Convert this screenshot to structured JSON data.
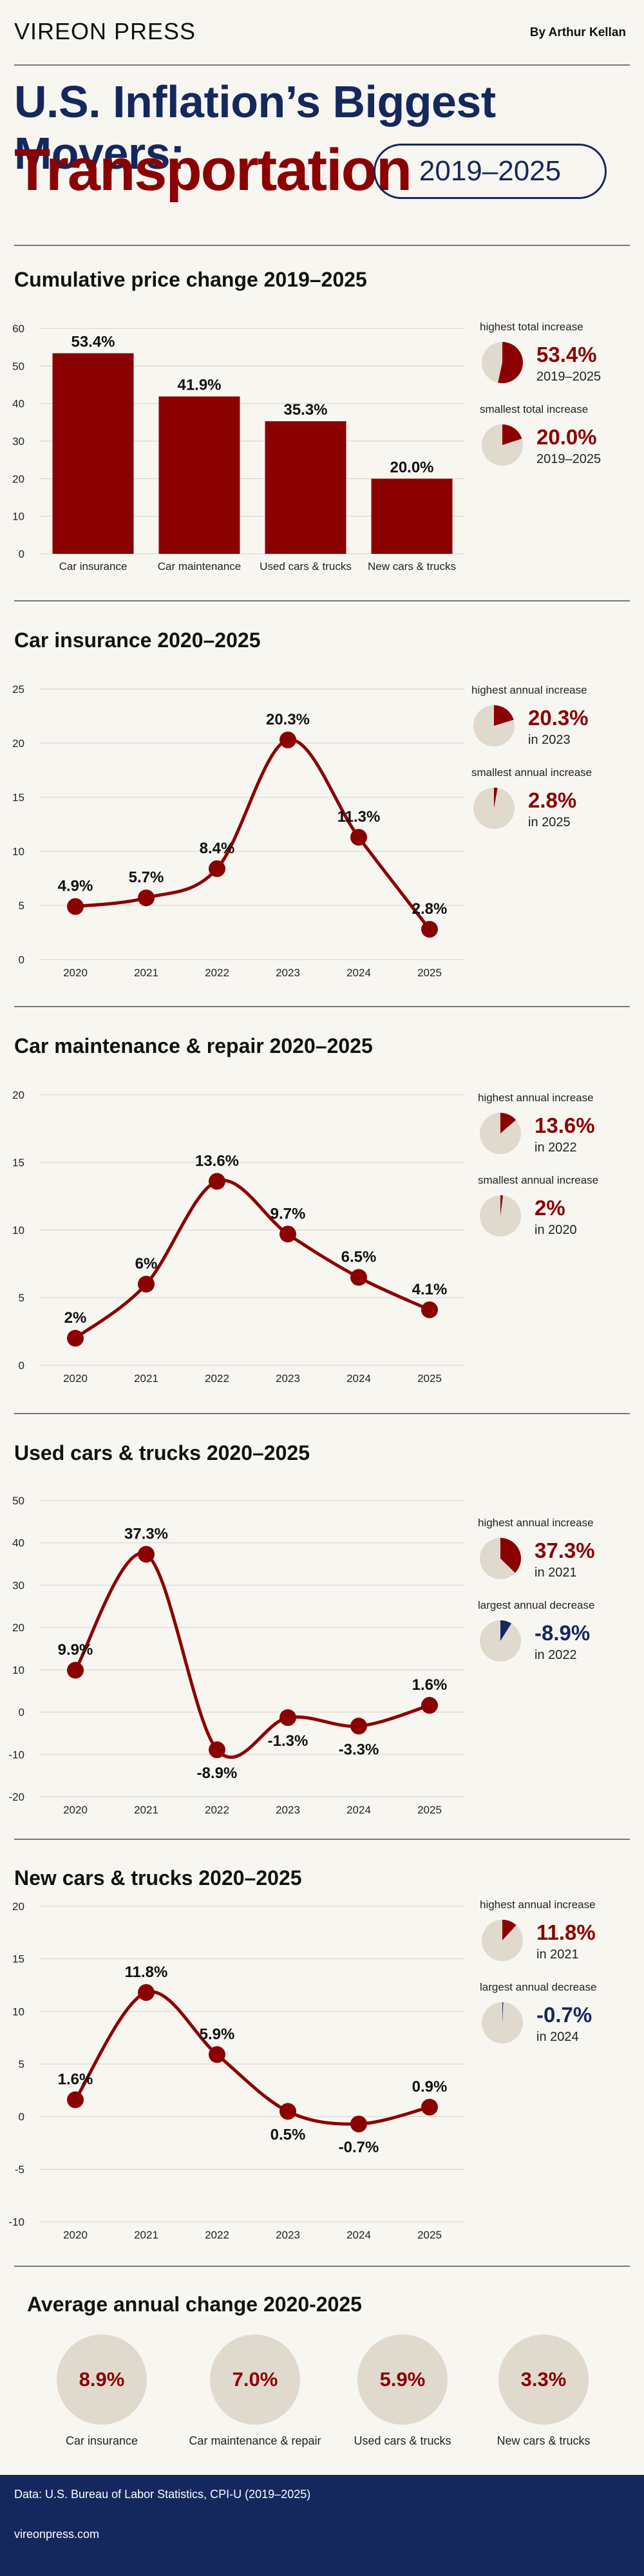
{
  "header": {
    "brand": "VIREON PRESS",
    "author": "By Arthur Kellan"
  },
  "title": {
    "main": "U.S. Inflation’s Biggest Movers:",
    "sub": "Transportation",
    "years": "2019–2025"
  },
  "colors": {
    "accent": "#8b0000",
    "navy": "#15285e",
    "pie_bg": "#e0d9cd"
  },
  "sections": {
    "cumulative": {
      "title": "Cumulative price change 2019–2025",
      "stats": [
        {
          "label": "highest total increase",
          "value": "53.4%",
          "sub": "2019–2025",
          "fraction": 0.534,
          "negative": false
        },
        {
          "label": "smallest total increase",
          "value": "20.0%",
          "sub": "2019–2025",
          "fraction": 0.2,
          "negative": false
        }
      ]
    },
    "insurance": {
      "title": "Car insurance 2020–2025",
      "stats": [
        {
          "label": "highest annual increase",
          "value": "20.3%",
          "sub": "in 2023",
          "fraction": 0.203,
          "negative": false
        },
        {
          "label": "smallest annual increase",
          "value": "2.8%",
          "sub": "in 2025",
          "fraction": 0.028,
          "negative": false
        }
      ]
    },
    "maintenance": {
      "title": "Car maintenance & repair 2020–2025",
      "stats": [
        {
          "label": "highest annual increase",
          "value": "13.6%",
          "sub": "in 2022",
          "fraction": 0.136,
          "negative": false
        },
        {
          "label": "smallest annual increase",
          "value": "2%",
          "sub": "in 2020",
          "fraction": 0.02,
          "negative": false
        }
      ]
    },
    "used": {
      "title": "Used cars & trucks 2020–2025",
      "stats": [
        {
          "label": "highest annual increase",
          "value": "37.3%",
          "sub": "in 2021",
          "fraction": 0.373,
          "negative": false
        },
        {
          "label": "largest annual decrease",
          "value": "-8.9%",
          "sub": "in 2022",
          "fraction": 0.089,
          "negative": true
        }
      ]
    },
    "newcars": {
      "title": "New cars & trucks 2020–2025",
      "stats": [
        {
          "label": "highest annual increase",
          "value": "11.8%",
          "sub": "in 2021",
          "fraction": 0.118,
          "negative": false
        },
        {
          "label": "largest annual decrease",
          "value": "-0.7%",
          "sub": "in 2024",
          "fraction": 0.007,
          "negative": true
        }
      ]
    },
    "average": {
      "title": "Average annual change 2020-2025",
      "items": [
        {
          "value": "8.9%",
          "label": "Car insurance"
        },
        {
          "value": "7.0%",
          "label": "Car maintenance & repair"
        },
        {
          "value": "5.9%",
          "label": "Used cars & trucks"
        },
        {
          "value": "3.3%",
          "label": "New cars & trucks"
        }
      ]
    }
  },
  "chart_data": [
    {
      "id": "cumulative",
      "type": "bar",
      "title": "Cumulative price change 2019–2025",
      "categories": [
        "Car insurance",
        "Car maintenance",
        "Used cars & trucks",
        "New cars & trucks"
      ],
      "values": [
        53.4,
        41.9,
        35.3,
        20.0
      ],
      "labels": [
        "53.4%",
        "41.9%",
        "35.3%",
        "20.0%"
      ],
      "ylim": [
        0,
        60
      ],
      "yticks": [
        0,
        10,
        20,
        30,
        40,
        50,
        60
      ],
      "grid": true
    },
    {
      "id": "insurance",
      "type": "line",
      "title": "Car insurance 2020–2025",
      "x": [
        "2020",
        "2021",
        "2022",
        "2023",
        "2024",
        "2025"
      ],
      "values": [
        4.9,
        5.7,
        8.4,
        20.3,
        11.3,
        2.8
      ],
      "labels": [
        "4.9%",
        "5.7%",
        "8.4%",
        "20.3%",
        "11.3%",
        "2.8%"
      ],
      "ylim": [
        0,
        25
      ],
      "yticks": [
        0,
        5,
        10,
        15,
        20,
        25
      ],
      "grid": true
    },
    {
      "id": "maintenance",
      "type": "line",
      "title": "Car maintenance & repair 2020–2025",
      "x": [
        "2020",
        "2021",
        "2022",
        "2023",
        "2024",
        "2025"
      ],
      "values": [
        2,
        6,
        13.6,
        9.7,
        6.5,
        4.1
      ],
      "labels": [
        "2%",
        "6%",
        "13.6%",
        "9.7%",
        "6.5%",
        "4.1%"
      ],
      "ylim": [
        0,
        20
      ],
      "yticks": [
        0,
        5,
        10,
        15,
        20
      ],
      "grid": true
    },
    {
      "id": "used",
      "type": "line",
      "title": "Used cars & trucks 2020–2025",
      "x": [
        "2020",
        "2021",
        "2022",
        "2023",
        "2024",
        "2025"
      ],
      "values": [
        9.9,
        37.3,
        -8.9,
        -1.3,
        -3.3,
        1.6
      ],
      "labels": [
        "9.9%",
        "37.3%",
        "-8.9%",
        "-1.3%",
        "-3.3%",
        "1.6%"
      ],
      "ylim": [
        -20,
        50
      ],
      "yticks": [
        -20,
        -10,
        0,
        10,
        20,
        30,
        40,
        50
      ],
      "grid": true
    },
    {
      "id": "newcars",
      "type": "line",
      "title": "New cars & trucks 2020–2025",
      "x": [
        "2020",
        "2021",
        "2022",
        "2023",
        "2024",
        "2025"
      ],
      "values": [
        1.6,
        11.8,
        5.9,
        0.5,
        -0.7,
        0.9
      ],
      "labels": [
        "1.6%",
        "11.8%",
        "5.9%",
        "0.5%",
        "-0.7%",
        "0.9%"
      ],
      "ylim": [
        -10,
        20
      ],
      "yticks": [
        -10,
        -5,
        0,
        5,
        10,
        15,
        20
      ],
      "grid": true
    }
  ],
  "footer": {
    "source": "Data: U.S. Bureau of Labor Statistics, CPI-U (2019–2025)",
    "url": "vireonpress.com"
  }
}
